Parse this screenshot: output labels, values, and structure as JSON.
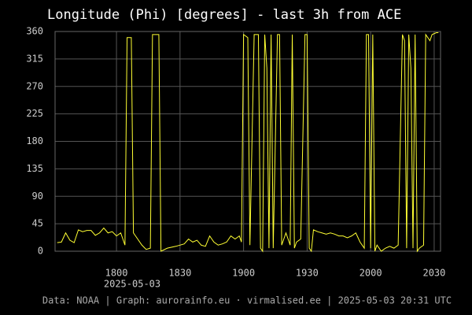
{
  "chart_data": {
    "type": "line",
    "title": "Longitude (Phi) [degrees] - last 3h from ACE",
    "x_date_label": "2025-05-03",
    "footer": "Data: NOAA | Graph: aurorainfo.eu · virmalised.ee | 2025-05-03 20:31 UTC",
    "x": [
      "17:32",
      "17:34",
      "17:36",
      "17:38",
      "17:40",
      "17:42",
      "17:44",
      "17:46",
      "17:48",
      "17:50",
      "17:52",
      "17:54",
      "17:56",
      "17:58",
      "18:00",
      "18:02",
      "18:04",
      "18:05",
      "18:07",
      "18:08",
      "18:10",
      "18:12",
      "18:14",
      "18:16",
      "18:17",
      "18:20",
      "18:21",
      "18:24",
      "18:28",
      "18:32",
      "18:34",
      "18:36",
      "18:38",
      "18:40",
      "18:42",
      "18:44",
      "18:46",
      "18:48",
      "18:50",
      "18:52",
      "18:54",
      "18:56",
      "18:58",
      "18:59",
      "19:00",
      "19:02",
      "19:03",
      "19:05",
      "19:07",
      "19:08",
      "19:09",
      "19:10",
      "19:11",
      "19:12",
      "19:13",
      "19:14",
      "19:16",
      "19:17",
      "19:18",
      "19:20",
      "19:22",
      "19:23",
      "19:24",
      "19:25",
      "19:27",
      "19:29",
      "19:30",
      "19:31",
      "19:32",
      "19:33",
      "19:35",
      "19:37",
      "19:39",
      "19:41",
      "19:43",
      "19:45",
      "19:47",
      "19:49",
      "19:51",
      "19:53",
      "19:55",
      "19:57",
      "19:58",
      "19:59",
      "20:00",
      "20:01",
      "20:02",
      "20:03",
      "20:05",
      "20:07",
      "20:09",
      "20:11",
      "20:13",
      "20:15",
      "20:16",
      "20:17",
      "20:18",
      "20:19",
      "20:20",
      "20:21",
      "20:22",
      "20:23",
      "20:25",
      "20:26",
      "20:28",
      "20:29",
      "20:31",
      "20:32"
    ],
    "series": [
      {
        "name": "Phi",
        "color": "#ffff33",
        "values": [
          14,
          15,
          30,
          18,
          14,
          35,
          32,
          34,
          34,
          26,
          30,
          38,
          30,
          32,
          25,
          30,
          10,
          350,
          350,
          30,
          20,
          10,
          3,
          5,
          355,
          355,
          0,
          5,
          8,
          12,
          20,
          15,
          18,
          10,
          8,
          25,
          15,
          10,
          12,
          15,
          25,
          20,
          25,
          15,
          355,
          350,
          10,
          355,
          355,
          5,
          0,
          355,
          300,
          5,
          355,
          5,
          355,
          355,
          10,
          30,
          10,
          355,
          5,
          15,
          20,
          355,
          355,
          5,
          0,
          35,
          32,
          30,
          28,
          30,
          28,
          25,
          25,
          22,
          25,
          30,
          15,
          5,
          355,
          355,
          5,
          355,
          0,
          10,
          0,
          5,
          8,
          5,
          10,
          355,
          345,
          5,
          355,
          300,
          5,
          355,
          0,
          5,
          10,
          355,
          345,
          355,
          358,
          358
        ]
      }
    ],
    "xlim": [
      "17:31",
      "20:33"
    ],
    "xticks": [
      {
        "value": "18:00",
        "label": "1800"
      },
      {
        "value": "18:30",
        "label": "1830"
      },
      {
        "value": "19:00",
        "label": "1900"
      },
      {
        "value": "19:30",
        "label": "1930"
      },
      {
        "value": "20:00",
        "label": "2000"
      },
      {
        "value": "20:30",
        "label": "2030"
      }
    ],
    "ylim": [
      0,
      360
    ],
    "yticks": [
      0,
      45,
      90,
      135,
      180,
      225,
      270,
      315,
      360
    ],
    "grid": true
  }
}
